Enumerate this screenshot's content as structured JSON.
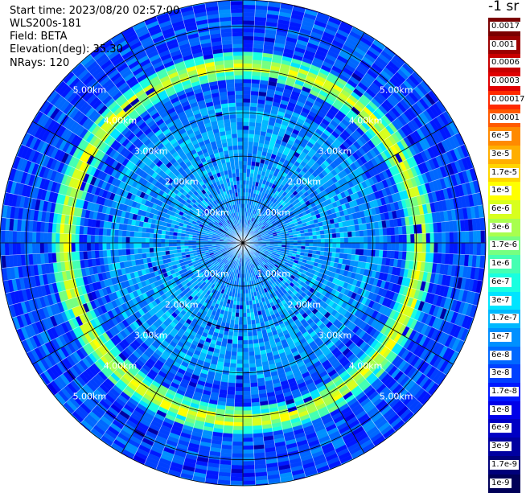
{
  "header": {
    "start_time": "Start time: 2023/08/20 02:57:00",
    "instrument": "WLS200s-181",
    "field": "Field: BETA",
    "elevation": "Elevation(deg): 35.30",
    "nrays": "NRays: 120"
  },
  "colorbar": {
    "title": "-1 sr",
    "labels": [
      "0.0017",
      "0.001",
      "0.0006",
      "0.0003",
      "0.00017",
      "0.0001",
      "6e-5",
      "3e-5",
      "1.7e-5",
      "1e-5",
      "6e-6",
      "3e-6",
      "1.7e-6",
      "1e-6",
      "6e-7",
      "3e-7",
      "1.7e-7",
      "1e-7",
      "6e-8",
      "3e-8",
      "1.7e-8",
      "1e-8",
      "6e-9",
      "3e-9",
      "1.7e-9",
      "1e-9"
    ],
    "colors": [
      "#7a0000",
      "#9c0000",
      "#c80000",
      "#e00000",
      "#ff2a00",
      "#ff5a00",
      "#ff8a00",
      "#ffae00",
      "#ffd500",
      "#ffff00",
      "#d8ff1e",
      "#a8ff4e",
      "#76ff80",
      "#44ffb2",
      "#18ffe0",
      "#00e4ff",
      "#00b8ff",
      "#0090ff",
      "#0068ff",
      "#0040ff",
      "#0018ff",
      "#0000e8",
      "#0000c4",
      "#0000a0",
      "#00007a",
      "#000058"
    ]
  },
  "chart_data": {
    "type": "heatmap",
    "projection": "polar PPI",
    "field": "BETA",
    "elevation_deg": 35.3,
    "nrays": 120,
    "rmax_km": 5.6,
    "range_ring_labels": [
      "1.00km",
      "2.00km",
      "3.00km",
      "4.00km",
      "5.00km"
    ],
    "range_rings_km": [
      1,
      2,
      3,
      4,
      5
    ],
    "aerosol_layer_km": 4.1,
    "aerosol_layer_value": "1.7e-5",
    "background_value_range": [
      "1e-8",
      "1e-6"
    ],
    "grid": true
  }
}
